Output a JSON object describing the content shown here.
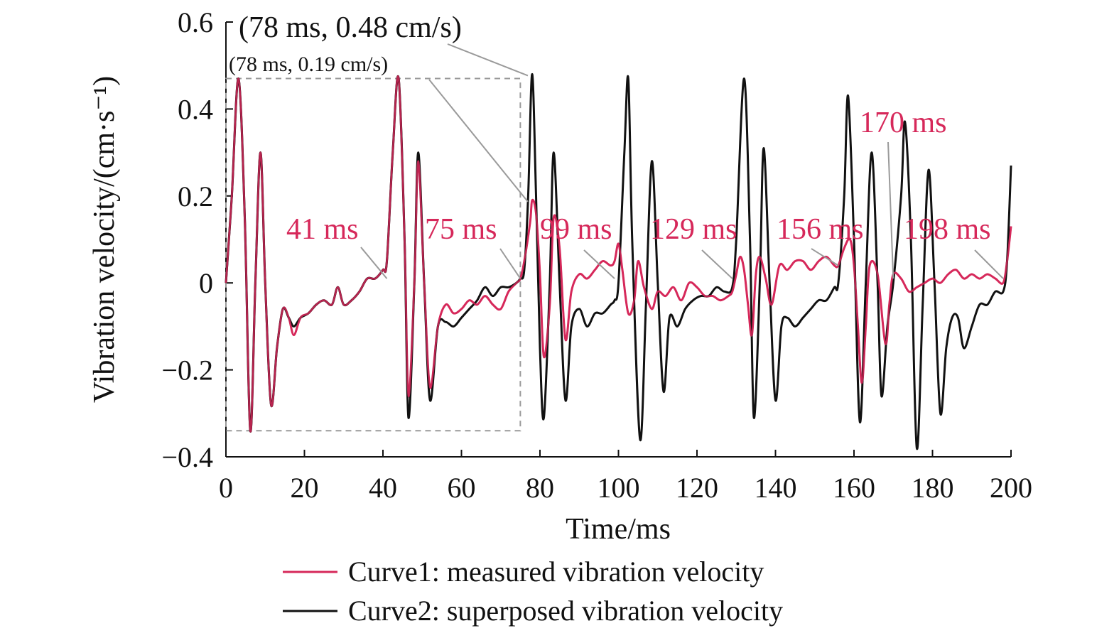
{
  "chart_data": {
    "type": "line",
    "xlabel": "Time/ms",
    "ylabel": "Vibration velocity/(cm·s⁻¹)",
    "xlim": [
      0,
      200
    ],
    "ylim": [
      -0.4,
      0.6
    ],
    "x_ticks": [
      "0",
      "20",
      "40",
      "60",
      "80",
      "100",
      "120",
      "140",
      "160",
      "180",
      "200"
    ],
    "y_ticks": [
      "−0.4",
      "−0.2",
      "0",
      "0.2",
      "0.4",
      "0.6"
    ],
    "grid": false,
    "legend_placement": "bottom",
    "series": [
      {
        "name": "Curve1: measured vibration velocity",
        "color": "#d6285a",
        "points": [
          [
            0,
            0
          ],
          [
            1.5,
            0.2
          ],
          [
            3.2,
            0.47
          ],
          [
            4.8,
            0.15
          ],
          [
            6.2,
            -0.34
          ],
          [
            7.5,
            0
          ],
          [
            8.8,
            0.3
          ],
          [
            10,
            0
          ],
          [
            11.5,
            -0.28
          ],
          [
            13,
            -0.15
          ],
          [
            14.5,
            -0.06
          ],
          [
            16,
            -0.08
          ],
          [
            17.3,
            -0.12
          ],
          [
            19,
            -0.08
          ],
          [
            21,
            -0.07
          ],
          [
            23,
            -0.05
          ],
          [
            25,
            -0.04
          ],
          [
            27,
            -0.05
          ],
          [
            28.5,
            -0.01
          ],
          [
            30,
            -0.05
          ],
          [
            32,
            -0.04
          ],
          [
            34,
            -0.02
          ],
          [
            36,
            0.01
          ],
          [
            38,
            0.01
          ],
          [
            40,
            0.03
          ],
          [
            41,
            0.05
          ],
          [
            42.5,
            0.3
          ],
          [
            44,
            0.47
          ],
          [
            45.5,
            0.1
          ],
          [
            46.5,
            -0.26
          ],
          [
            48,
            0
          ],
          [
            49,
            0.28
          ],
          [
            50.5,
            0
          ],
          [
            52,
            -0.24
          ],
          [
            54,
            -0.1
          ],
          [
            56,
            -0.05
          ],
          [
            58,
            -0.07
          ],
          [
            60,
            -0.06
          ],
          [
            62,
            -0.04
          ],
          [
            64,
            -0.05
          ],
          [
            66,
            -0.03
          ],
          [
            68,
            -0.05
          ],
          [
            70,
            -0.06
          ],
          [
            72,
            -0.02
          ],
          [
            74,
            0
          ],
          [
            75,
            0.01
          ],
          [
            76,
            0.05
          ],
          [
            77.5,
            0.14
          ],
          [
            78,
            0.19
          ],
          [
            79,
            0.16
          ],
          [
            80,
            0.02
          ],
          [
            81,
            -0.17
          ],
          [
            82.5,
            -0.05
          ],
          [
            83.5,
            0.15
          ],
          [
            85,
            0.08
          ],
          [
            86.5,
            -0.13
          ],
          [
            88,
            -0.02
          ],
          [
            90,
            0.02
          ],
          [
            92,
            0.01
          ],
          [
            94,
            0.03
          ],
          [
            96,
            0.05
          ],
          [
            98,
            0.04
          ],
          [
            99,
            0.05
          ],
          [
            100,
            0.09
          ],
          [
            101,
            0.03
          ],
          [
            102.5,
            -0.07
          ],
          [
            104,
            -0.04
          ],
          [
            105,
            0.05
          ],
          [
            106.5,
            -0.01
          ],
          [
            108.5,
            -0.06
          ],
          [
            110,
            -0.02
          ],
          [
            112,
            -0.03
          ],
          [
            114,
            -0.01
          ],
          [
            116,
            -0.04
          ],
          [
            118,
            0
          ],
          [
            120,
            -0.01
          ],
          [
            122,
            -0.03
          ],
          [
            124,
            -0.03
          ],
          [
            126,
            -0.04
          ],
          [
            128,
            -0.03
          ],
          [
            129,
            -0.02
          ],
          [
            130,
            0.02
          ],
          [
            131,
            0.06
          ],
          [
            132,
            0.03
          ],
          [
            133,
            -0.05
          ],
          [
            134,
            -0.12
          ],
          [
            135,
            0.02
          ],
          [
            136,
            0.06
          ],
          [
            137.5,
            0.01
          ],
          [
            139,
            -0.05
          ],
          [
            141,
            0.04
          ],
          [
            143,
            0.03
          ],
          [
            145,
            0.05
          ],
          [
            147,
            0.05
          ],
          [
            149,
            0.03
          ],
          [
            151,
            0.05
          ],
          [
            153,
            0.06
          ],
          [
            155,
            0.04
          ],
          [
            156,
            0.04
          ],
          [
            157.5,
            0.08
          ],
          [
            159,
            0.1
          ],
          [
            160,
            0.04
          ],
          [
            161,
            -0.1
          ],
          [
            162,
            -0.23
          ],
          [
            163,
            -0.1
          ],
          [
            164,
            0.04
          ],
          [
            166,
            0.02
          ],
          [
            168,
            -0.14
          ],
          [
            169,
            -0.05
          ],
          [
            170,
            0.02
          ],
          [
            172,
            0.01
          ],
          [
            174,
            -0.02
          ],
          [
            176,
            -0.01
          ],
          [
            178,
            0
          ],
          [
            180,
            0.01
          ],
          [
            182,
            0
          ],
          [
            184,
            0.02
          ],
          [
            186,
            0.03
          ],
          [
            188,
            0.01
          ],
          [
            190,
            0.02
          ],
          [
            192,
            0.01
          ],
          [
            194,
            0.02
          ],
          [
            196,
            0.01
          ],
          [
            198,
            0
          ],
          [
            199,
            0.05
          ],
          [
            200,
            0.13
          ]
        ]
      },
      {
        "name": "Curve2: superposed vibration velocity",
        "color": "#111111",
        "points": [
          [
            0,
            0
          ],
          [
            1.5,
            0.2
          ],
          [
            3.2,
            0.47
          ],
          [
            4.8,
            0.15
          ],
          [
            6.2,
            -0.34
          ],
          [
            7.5,
            0
          ],
          [
            8.8,
            0.3
          ],
          [
            10,
            0
          ],
          [
            11.5,
            -0.28
          ],
          [
            13,
            -0.15
          ],
          [
            14.5,
            -0.06
          ],
          [
            16,
            -0.08
          ],
          [
            17.3,
            -0.1
          ],
          [
            19,
            -0.08
          ],
          [
            21,
            -0.07
          ],
          [
            23,
            -0.05
          ],
          [
            25,
            -0.04
          ],
          [
            27,
            -0.05
          ],
          [
            28.5,
            -0.01
          ],
          [
            30,
            -0.05
          ],
          [
            32,
            -0.04
          ],
          [
            34,
            -0.02
          ],
          [
            36,
            0.01
          ],
          [
            38,
            0.01
          ],
          [
            40,
            0.03
          ],
          [
            41,
            0.05
          ],
          [
            42.5,
            0.3
          ],
          [
            44,
            0.47
          ],
          [
            45.5,
            0.1
          ],
          [
            46.5,
            -0.31
          ],
          [
            48,
            0
          ],
          [
            49,
            0.3
          ],
          [
            50.5,
            0
          ],
          [
            52,
            -0.27
          ],
          [
            54,
            -0.1
          ],
          [
            56,
            -0.09
          ],
          [
            58,
            -0.1
          ],
          [
            60,
            -0.08
          ],
          [
            62,
            -0.06
          ],
          [
            64,
            -0.04
          ],
          [
            66,
            -0.01
          ],
          [
            68,
            -0.03
          ],
          [
            70,
            -0.01
          ],
          [
            72,
            -0.01
          ],
          [
            74,
            0
          ],
          [
            75,
            0.01
          ],
          [
            76,
            0.03
          ],
          [
            77,
            0.2
          ],
          [
            78,
            0.48
          ],
          [
            79,
            0.2
          ],
          [
            80,
            -0.15
          ],
          [
            81,
            -0.31
          ],
          [
            82.5,
            0
          ],
          [
            83.5,
            0.3
          ],
          [
            85,
            0
          ],
          [
            86.5,
            -0.27
          ],
          [
            88,
            -0.1
          ],
          [
            90,
            -0.06
          ],
          [
            92,
            -0.1
          ],
          [
            94,
            -0.07
          ],
          [
            96,
            -0.07
          ],
          [
            98,
            -0.05
          ],
          [
            99,
            -0.04
          ],
          [
            100,
            0
          ],
          [
            101.5,
            0.3
          ],
          [
            102.5,
            0.47
          ],
          [
            103.5,
            0.1
          ],
          [
            105.5,
            -0.36
          ],
          [
            107,
            -0.05
          ],
          [
            108.5,
            0.28
          ],
          [
            110,
            0
          ],
          [
            111.5,
            -0.25
          ],
          [
            113,
            -0.08
          ],
          [
            115,
            -0.1
          ],
          [
            117,
            -0.06
          ],
          [
            119,
            -0.04
          ],
          [
            121,
            -0.03
          ],
          [
            123,
            -0.03
          ],
          [
            125,
            -0.01
          ],
          [
            127,
            -0.02
          ],
          [
            129,
            -0.01
          ],
          [
            130,
            0.1
          ],
          [
            132,
            0.47
          ],
          [
            133.5,
            0.1
          ],
          [
            134.5,
            -0.31
          ],
          [
            136,
            0
          ],
          [
            137,
            0.31
          ],
          [
            138.5,
            0
          ],
          [
            140,
            -0.27
          ],
          [
            141.5,
            -0.1
          ],
          [
            143,
            -0.08
          ],
          [
            145,
            -0.1
          ],
          [
            147,
            -0.08
          ],
          [
            149,
            -0.06
          ],
          [
            151,
            -0.04
          ],
          [
            153,
            -0.04
          ],
          [
            155,
            -0.01
          ],
          [
            156,
            0
          ],
          [
            157.5,
            0.2
          ],
          [
            158.5,
            0.43
          ],
          [
            160,
            0.1
          ],
          [
            161.5,
            -0.32
          ],
          [
            163,
            0
          ],
          [
            164.5,
            0.3
          ],
          [
            166,
            0
          ],
          [
            167,
            -0.26
          ],
          [
            168.5,
            -0.1
          ],
          [
            170,
            0
          ],
          [
            172,
            0.2
          ],
          [
            173,
            0.37
          ],
          [
            174.5,
            0.1
          ],
          [
            176,
            -0.38
          ],
          [
            177.5,
            -0.05
          ],
          [
            179,
            0.26
          ],
          [
            180.5,
            0
          ],
          [
            182,
            -0.3
          ],
          [
            183.5,
            -0.15
          ],
          [
            185,
            -0.08
          ],
          [
            186.5,
            -0.08
          ],
          [
            188,
            -0.15
          ],
          [
            190,
            -0.1
          ],
          [
            192,
            -0.05
          ],
          [
            194,
            -0.05
          ],
          [
            196,
            -0.02
          ],
          [
            198,
            -0.02
          ],
          [
            199,
            0.05
          ],
          [
            200,
            0.27
          ]
        ]
      }
    ],
    "annotations": {
      "peak_superposed": {
        "text": "(78 ms, 0.48 cm/s)",
        "x": 78,
        "y": 0.48
      },
      "peak_measured": {
        "text": "(78 ms, 0.19 cm/s)",
        "x": 78,
        "y": 0.19
      },
      "time_markers": [
        {
          "text": "41 ms",
          "x": 41,
          "y": 0.01
        },
        {
          "text": "75 ms",
          "x": 75,
          "y": 0.01
        },
        {
          "text": "99 ms",
          "x": 99,
          "y": 0.01
        },
        {
          "text": "129 ms",
          "x": 129,
          "y": 0.01
        },
        {
          "text": "156 ms",
          "x": 156,
          "y": 0.04
        },
        {
          "text": "170 ms",
          "x": 170,
          "y": 0.01
        },
        {
          "text": "198 ms",
          "x": 198,
          "y": 0.01
        }
      ],
      "dashed_box": {
        "x0": 0,
        "x1": 75,
        "y0": -0.34,
        "y1": 0.47
      }
    }
  }
}
